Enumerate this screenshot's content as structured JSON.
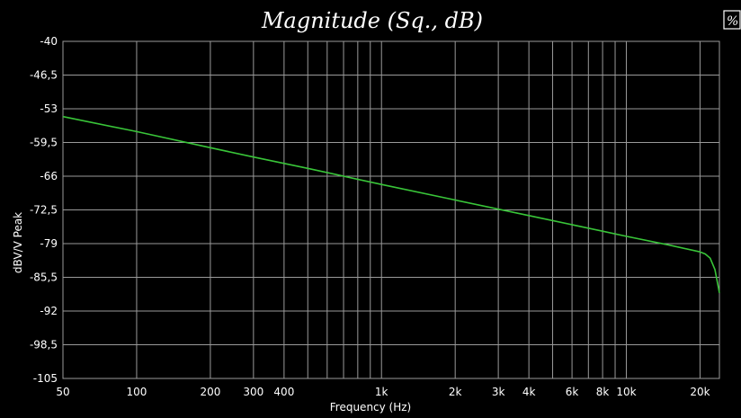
{
  "icons": {
    "corner": "chart-options-icon"
  },
  "colors": {
    "background": "#000000",
    "grid": "#9a9a9a",
    "series": "#39c539",
    "text": "#ffffff"
  },
  "chart_data": {
    "type": "line",
    "title": "Magnitude (Sq., dB)",
    "xlabel": "Frequency (Hz)",
    "ylabel": "dBV/V Peak",
    "xscale": "log",
    "xlim": [
      50,
      24000
    ],
    "ylim": [
      -105,
      -40
    ],
    "grid": true,
    "y_ticks": [
      -40,
      -46.5,
      -53,
      -59.5,
      -66,
      -72.5,
      -79,
      -85.5,
      -92,
      -98.5,
      -105
    ],
    "y_tick_labels": [
      "-40",
      "-46,5",
      "-53",
      "-59,5",
      "-66",
      "-72,5",
      "-79",
      "-85,5",
      "-92",
      "-98,5",
      "-105"
    ],
    "x_ticks": [
      50,
      100,
      200,
      300,
      400,
      1000,
      2000,
      3000,
      4000,
      6000,
      8000,
      10000,
      20000
    ],
    "x_tick_labels": [
      "50",
      "100",
      "200",
      "300",
      "400",
      "1k",
      "2k",
      "3k",
      "4k",
      "6k",
      "8k",
      "10k",
      "20k"
    ],
    "x_minor_grid": [
      500,
      600,
      700,
      800,
      900,
      5000,
      7000,
      9000
    ],
    "series": [
      {
        "x": [
          50,
          100,
          200,
          300,
          500,
          1000,
          2000,
          4000,
          8000,
          10000,
          15000,
          20000,
          21000,
          22000,
          23000,
          24000
        ],
        "y": [
          -54.5,
          -57.4,
          -60.5,
          -62.3,
          -64.5,
          -67.6,
          -70.6,
          -73.6,
          -76.6,
          -77.6,
          -79.3,
          -80.6,
          -81.0,
          -81.8,
          -84.0,
          -88.5
        ]
      }
    ]
  }
}
